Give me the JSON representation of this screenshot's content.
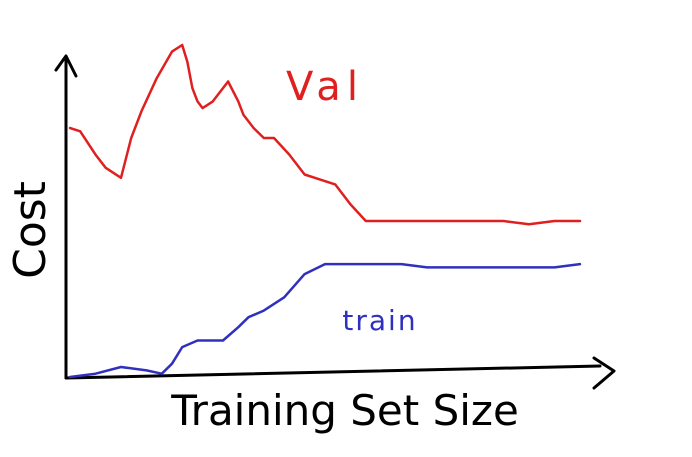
{
  "chart_data": {
    "type": "line",
    "title": "",
    "xlabel": "Training Set Size",
    "ylabel": "Cost",
    "grid": false,
    "legend": "none",
    "xlim": [
      0,
      100
    ],
    "ylim": [
      0,
      100
    ],
    "series": [
      {
        "name": "Val",
        "color": "#e02020",
        "label_anchor": "top-right",
        "x": [
          0,
          2,
          5,
          7,
          10,
          12,
          14,
          17,
          20,
          22,
          23,
          24,
          25,
          26,
          27,
          28,
          31,
          33,
          34,
          36,
          38,
          40,
          43,
          46,
          48,
          52,
          55,
          58,
          60,
          65,
          70,
          75,
          80,
          85,
          90,
          95,
          100
        ],
        "y": [
          75,
          74,
          67,
          63,
          60,
          72,
          80,
          90,
          98,
          100,
          95,
          87,
          83,
          81,
          82,
          83,
          89,
          83,
          79,
          75,
          72,
          72,
          67,
          61,
          60,
          58,
          52,
          47,
          47,
          47,
          47,
          47,
          47,
          47,
          46,
          47,
          47
        ]
      },
      {
        "name": "train",
        "color": "#3030c0",
        "label_anchor": "mid",
        "x": [
          0,
          5,
          10,
          15,
          18,
          20,
          22,
          25,
          30,
          33,
          35,
          38,
          42,
          46,
          50,
          55,
          60,
          65,
          70,
          75,
          80,
          85,
          90,
          95,
          100
        ],
        "y": [
          0,
          1,
          3,
          2,
          1,
          4,
          9,
          11,
          11,
          15,
          18,
          20,
          24,
          31,
          34,
          34,
          34,
          34,
          33,
          33,
          33,
          33,
          33,
          33,
          34
        ]
      }
    ]
  }
}
